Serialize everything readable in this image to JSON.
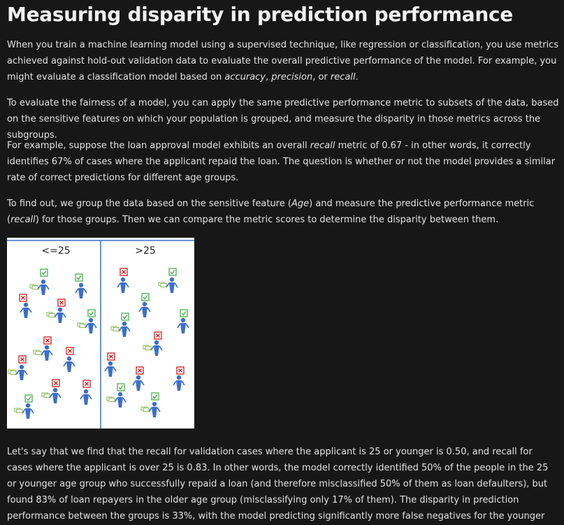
{
  "title": "Measuring disparity in prediction performance",
  "p1": {
    "a": "When you train a machine learning model using a supervised technique, like regression or classification, you use metrics achieved against hold-out validation data to evaluate the overall predictive performance of the model. For example, you might evaluate a classification model based on ",
    "m1": "accuracy",
    "s1": ", ",
    "m2": "precision",
    "s2": ", or ",
    "m3": "recall",
    "end": "."
  },
  "p2": "To evaluate the fairness of a model, you can apply the same predictive performance metric to subsets of the data, based on the sensitive features on which your population is grouped, and measure the disparity in those metrics across the subgroups.",
  "p3": {
    "a": "For example, suppose the loan approval model exhibits an overall ",
    "m": "recall",
    "b": " metric of 0.67 - in other words, it correctly identifies 67% of cases where the applicant repaid the loan. The question is whether or not the model provides a similar rate of correct predictions for different age groups."
  },
  "p4": {
    "a": "To find out, we group the data based on the sensitive feature (",
    "m1": "Age",
    "b": ") and measure the predictive performance metric (",
    "m2": "recall",
    "c": ") for those groups. Then we can compare the metric scores to determine the disparity between them."
  },
  "figure": {
    "left_label": "<=25",
    "right_label": ">25",
    "colors": {
      "person": "#3b6fc9",
      "check": "#4caf50",
      "cross": "#d02020",
      "money": "#7cb342",
      "divider": "#3b6fc9"
    }
  },
  "p5": "Let's say that we find that the recall for validation cases where the applicant is 25 or younger is 0.50, and recall for cases where the applicant is over 25 is 0.83. In other words, the model correctly identified 50% of the people in the 25 or younger age group who successfully repaid a loan (and therefore misclassified 50% of them as loan defaulters), but found 83% of loan repayers in the older age group (misclassifying only 17% of them). The disparity in prediction performance between the groups is 33%, with the model predicting significantly more false negatives for the younger age group."
}
